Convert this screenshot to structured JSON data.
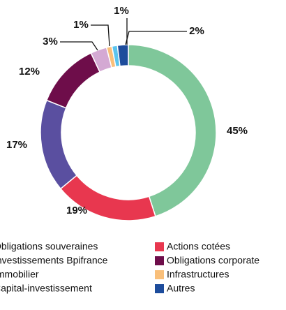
{
  "chart_data": {
    "type": "donut",
    "categories": [
      "Obligations souveraines",
      "Actions cotées",
      "Investissements Bpifrance",
      "Obligations corporate",
      "Immobilier",
      "Infrastructures",
      "Capital-investissement",
      "Autres"
    ],
    "values": [
      45,
      19,
      17,
      12,
      3,
      1,
      1,
      2
    ],
    "value_labels": [
      "45%",
      "19%",
      "17%",
      "12%",
      "3%",
      "1%",
      "1%",
      "2%"
    ],
    "colors": [
      "#7fc79a",
      "#e8374f",
      "#5a4fa0",
      "#6e0d4a",
      "#d4a9d3",
      "#f9bf7a",
      "#5bc4ee",
      "#1d4c9c"
    ]
  }
}
